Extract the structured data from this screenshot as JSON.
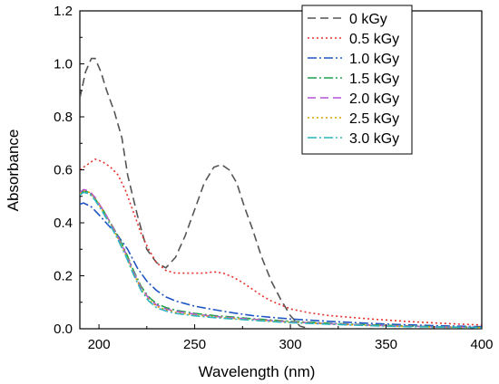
{
  "chart_data": {
    "type": "line",
    "title": "",
    "xlabel": "Wavelength (nm)",
    "ylabel": "Absorbance",
    "xlim": [
      190,
      400
    ],
    "ylim": [
      0,
      1.2
    ],
    "x_ticks": [
      200,
      250,
      300,
      350,
      400
    ],
    "y_ticks": [
      0.0,
      0.2,
      0.4,
      0.6,
      0.8,
      1.0,
      1.2
    ],
    "x_tick_labels": [
      "200",
      "250",
      "300",
      "350",
      "400"
    ],
    "y_tick_labels": [
      "0.0",
      "0.2",
      "0.4",
      "0.6",
      "0.8",
      "1.0",
      "1.2"
    ],
    "grid": false,
    "legend": "top-right",
    "series": [
      {
        "name": "0 kGy",
        "color": "#555555",
        "dash": "dashed",
        "points": [
          [
            190,
            0.87
          ],
          [
            193,
            0.97
          ],
          [
            196,
            1.02
          ],
          [
            198,
            1.02
          ],
          [
            201,
            0.97
          ],
          [
            204,
            0.9
          ],
          [
            208,
            0.82
          ],
          [
            212,
            0.72
          ],
          [
            215,
            0.58
          ],
          [
            220,
            0.43
          ],
          [
            225,
            0.3
          ],
          [
            230,
            0.25
          ],
          [
            235,
            0.23
          ],
          [
            240,
            0.27
          ],
          [
            245,
            0.35
          ],
          [
            250,
            0.45
          ],
          [
            255,
            0.55
          ],
          [
            260,
            0.61
          ],
          [
            264,
            0.62
          ],
          [
            268,
            0.6
          ],
          [
            272,
            0.55
          ],
          [
            276,
            0.46
          ],
          [
            280,
            0.38
          ],
          [
            285,
            0.27
          ],
          [
            290,
            0.18
          ],
          [
            295,
            0.11
          ],
          [
            300,
            0.05
          ],
          [
            305,
            0.01
          ],
          [
            310,
            0.0
          ],
          [
            320,
            0.0
          ],
          [
            350,
            0.0
          ],
          [
            400,
            0.0
          ]
        ]
      },
      {
        "name": "0.5 kGy",
        "color": "#e8322d",
        "dash": "dotted",
        "points": [
          [
            190,
            0.6
          ],
          [
            194,
            0.62
          ],
          [
            198,
            0.64
          ],
          [
            202,
            0.63
          ],
          [
            206,
            0.61
          ],
          [
            210,
            0.58
          ],
          [
            214,
            0.52
          ],
          [
            218,
            0.44
          ],
          [
            222,
            0.36
          ],
          [
            226,
            0.3
          ],
          [
            230,
            0.25
          ],
          [
            235,
            0.22
          ],
          [
            240,
            0.21
          ],
          [
            245,
            0.21
          ],
          [
            250,
            0.21
          ],
          [
            255,
            0.21
          ],
          [
            260,
            0.215
          ],
          [
            265,
            0.21
          ],
          [
            270,
            0.195
          ],
          [
            275,
            0.175
          ],
          [
            280,
            0.15
          ],
          [
            285,
            0.125
          ],
          [
            290,
            0.105
          ],
          [
            295,
            0.09
          ],
          [
            300,
            0.075
          ],
          [
            310,
            0.06
          ],
          [
            320,
            0.05
          ],
          [
            340,
            0.038
          ],
          [
            360,
            0.028
          ],
          [
            380,
            0.02
          ],
          [
            400,
            0.014
          ]
        ]
      },
      {
        "name": "1.0 kGy",
        "color": "#1f56c4",
        "dash": "dashdot",
        "points": [
          [
            190,
            0.47
          ],
          [
            192,
            0.475
          ],
          [
            196,
            0.46
          ],
          [
            200,
            0.43
          ],
          [
            205,
            0.39
          ],
          [
            210,
            0.35
          ],
          [
            215,
            0.3
          ],
          [
            220,
            0.23
          ],
          [
            225,
            0.18
          ],
          [
            230,
            0.145
          ],
          [
            235,
            0.12
          ],
          [
            240,
            0.105
          ],
          [
            245,
            0.095
          ],
          [
            250,
            0.085
          ],
          [
            260,
            0.072
          ],
          [
            270,
            0.06
          ],
          [
            280,
            0.05
          ],
          [
            290,
            0.043
          ],
          [
            300,
            0.037
          ],
          [
            320,
            0.028
          ],
          [
            340,
            0.021
          ],
          [
            360,
            0.015
          ],
          [
            380,
            0.011
          ],
          [
            400,
            0.008
          ]
        ]
      },
      {
        "name": "1.5 kGy",
        "color": "#1aa34a",
        "dash": "dashdot",
        "points": [
          [
            190,
            0.51
          ],
          [
            192,
            0.52
          ],
          [
            195,
            0.515
          ],
          [
            198,
            0.49
          ],
          [
            202,
            0.45
          ],
          [
            206,
            0.4
          ],
          [
            210,
            0.35
          ],
          [
            214,
            0.29
          ],
          [
            218,
            0.22
          ],
          [
            222,
            0.16
          ],
          [
            226,
            0.12
          ],
          [
            230,
            0.095
          ],
          [
            235,
            0.08
          ],
          [
            240,
            0.07
          ],
          [
            250,
            0.058
          ],
          [
            260,
            0.05
          ],
          [
            270,
            0.044
          ],
          [
            280,
            0.038
          ],
          [
            290,
            0.033
          ],
          [
            300,
            0.028
          ],
          [
            320,
            0.021
          ],
          [
            340,
            0.015
          ],
          [
            360,
            0.011
          ],
          [
            380,
            0.007
          ],
          [
            400,
            0.005
          ]
        ]
      },
      {
        "name": "2.0 kGy",
        "color": "#b455d6",
        "dash": "dashed",
        "points": [
          [
            190,
            0.515
          ],
          [
            192,
            0.525
          ],
          [
            195,
            0.52
          ],
          [
            198,
            0.495
          ],
          [
            202,
            0.45
          ],
          [
            206,
            0.4
          ],
          [
            210,
            0.345
          ],
          [
            214,
            0.285
          ],
          [
            218,
            0.215
          ],
          [
            222,
            0.155
          ],
          [
            226,
            0.115
          ],
          [
            230,
            0.09
          ],
          [
            235,
            0.075
          ],
          [
            240,
            0.066
          ],
          [
            250,
            0.055
          ],
          [
            260,
            0.047
          ],
          [
            270,
            0.041
          ],
          [
            280,
            0.036
          ],
          [
            290,
            0.031
          ],
          [
            300,
            0.026
          ],
          [
            320,
            0.019
          ],
          [
            340,
            0.014
          ],
          [
            360,
            0.01
          ],
          [
            380,
            0.007
          ],
          [
            400,
            0.005
          ]
        ]
      },
      {
        "name": "2.5 kGy",
        "color": "#d9a100",
        "dash": "dotted",
        "points": [
          [
            190,
            0.51
          ],
          [
            192,
            0.52
          ],
          [
            195,
            0.515
          ],
          [
            198,
            0.49
          ],
          [
            202,
            0.445
          ],
          [
            206,
            0.395
          ],
          [
            210,
            0.34
          ],
          [
            214,
            0.28
          ],
          [
            218,
            0.21
          ],
          [
            222,
            0.15
          ],
          [
            226,
            0.11
          ],
          [
            230,
            0.085
          ],
          [
            235,
            0.071
          ],
          [
            240,
            0.062
          ],
          [
            250,
            0.052
          ],
          [
            260,
            0.045
          ],
          [
            270,
            0.039
          ],
          [
            280,
            0.034
          ],
          [
            290,
            0.029
          ],
          [
            300,
            0.025
          ],
          [
            320,
            0.018
          ],
          [
            340,
            0.013
          ],
          [
            360,
            0.009
          ],
          [
            380,
            0.006
          ],
          [
            400,
            0.004
          ]
        ]
      },
      {
        "name": "3.0 kGy",
        "color": "#2bb3c0",
        "dash": "dashdot",
        "points": [
          [
            190,
            0.505
          ],
          [
            192,
            0.515
          ],
          [
            195,
            0.51
          ],
          [
            198,
            0.485
          ],
          [
            202,
            0.44
          ],
          [
            206,
            0.39
          ],
          [
            210,
            0.335
          ],
          [
            214,
            0.275
          ],
          [
            218,
            0.205
          ],
          [
            222,
            0.145
          ],
          [
            226,
            0.105
          ],
          [
            230,
            0.08
          ],
          [
            235,
            0.067
          ],
          [
            240,
            0.058
          ],
          [
            250,
            0.049
          ],
          [
            260,
            0.042
          ],
          [
            270,
            0.037
          ],
          [
            280,
            0.032
          ],
          [
            290,
            0.027
          ],
          [
            300,
            0.023
          ],
          [
            320,
            0.017
          ],
          [
            340,
            0.012
          ],
          [
            360,
            0.008
          ],
          [
            380,
            0.006
          ],
          [
            400,
            0.004
          ]
        ]
      }
    ]
  }
}
